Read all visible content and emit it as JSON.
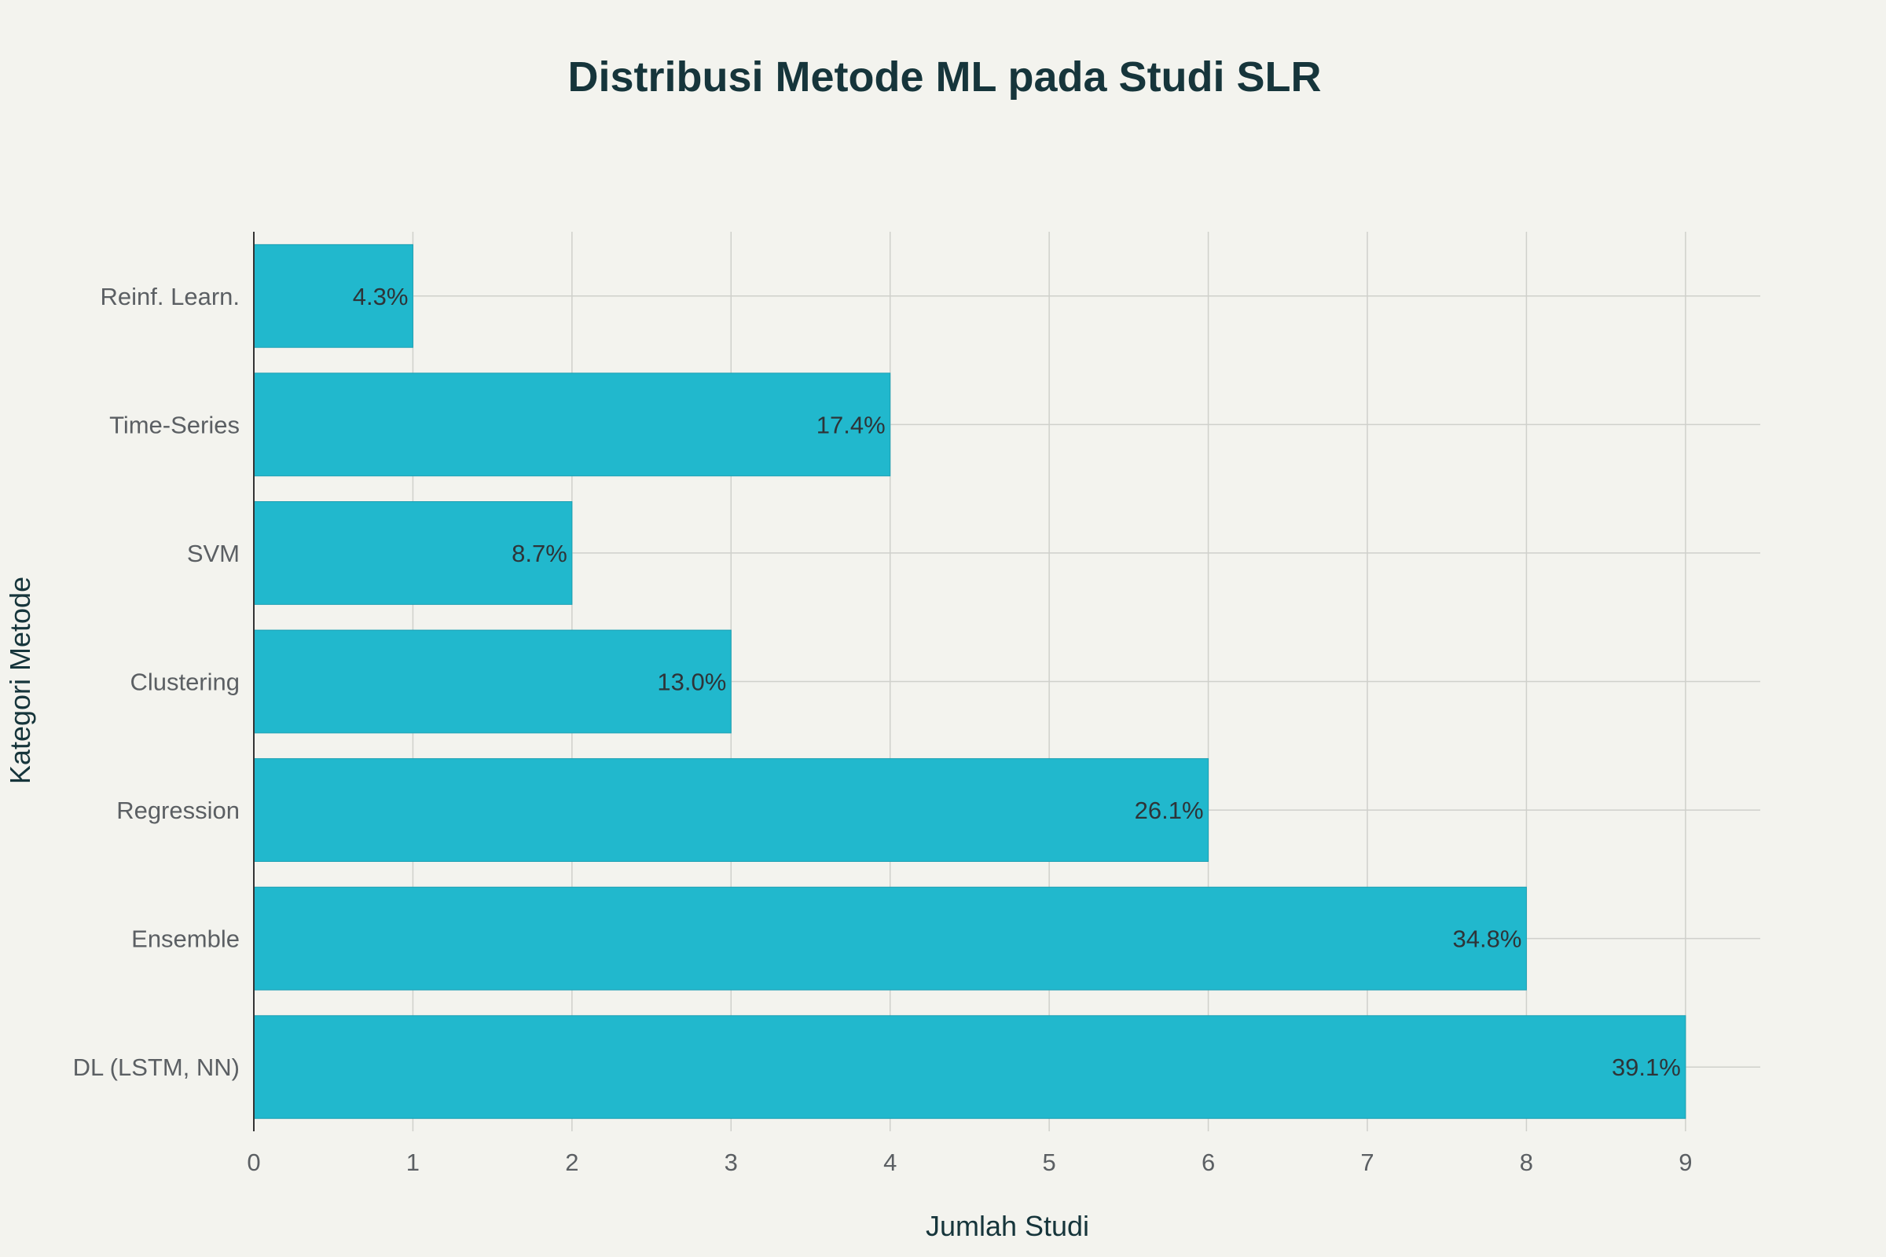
{
  "chart_data": {
    "type": "bar",
    "orientation": "horizontal",
    "title": "Distribusi Metode ML pada Studi SLR",
    "xlabel": "Jumlah Studi",
    "ylabel": "Kategori Metode",
    "categories": [
      "DL (LSTM, NN)",
      "Ensemble",
      "Regression",
      "Clustering",
      "SVM",
      "Time-Series",
      "Reinf. Learn."
    ],
    "values": [
      9,
      8,
      6,
      3,
      2,
      4,
      1
    ],
    "data_labels": [
      "39.1%",
      "34.8%",
      "26.1%",
      "13.0%",
      "8.7%",
      "17.4%",
      "4.3%"
    ],
    "xlim": [
      0,
      9.47
    ],
    "xticks": [
      0,
      1,
      2,
      3,
      4,
      5,
      6,
      7,
      8,
      9
    ],
    "grid": true,
    "legend": "none",
    "colors": {
      "bar": "#21b8cd",
      "background": "#f3f3ee",
      "title": "#16353b"
    }
  }
}
